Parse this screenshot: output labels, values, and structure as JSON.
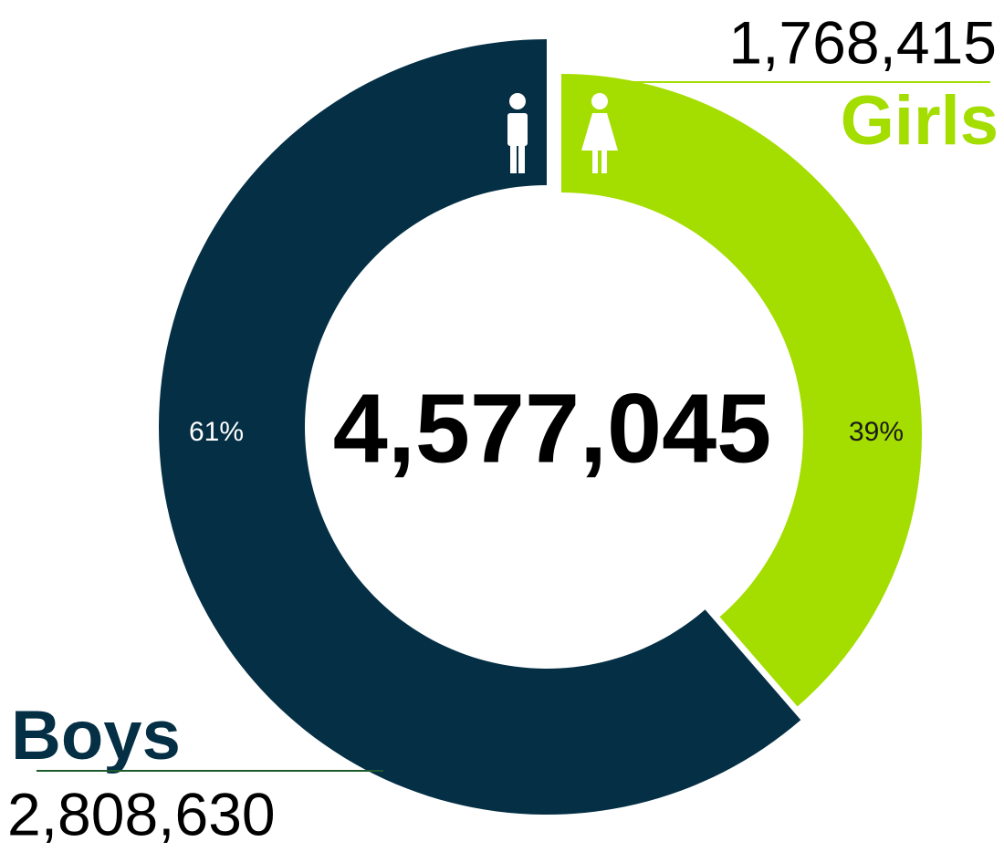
{
  "chart_data": {
    "type": "pie",
    "categories": [
      "Girls",
      "Boys"
    ],
    "values": [
      1768415,
      2808630
    ],
    "value_labels": [
      "1,768,415",
      "2,808,630"
    ],
    "percentages": [
      39,
      61
    ],
    "percentage_labels": [
      "39%",
      "61%"
    ],
    "colors": [
      "#a4dd00",
      "#042f45"
    ],
    "total": {
      "value": 4577045,
      "label": "4,577,045"
    }
  }
}
